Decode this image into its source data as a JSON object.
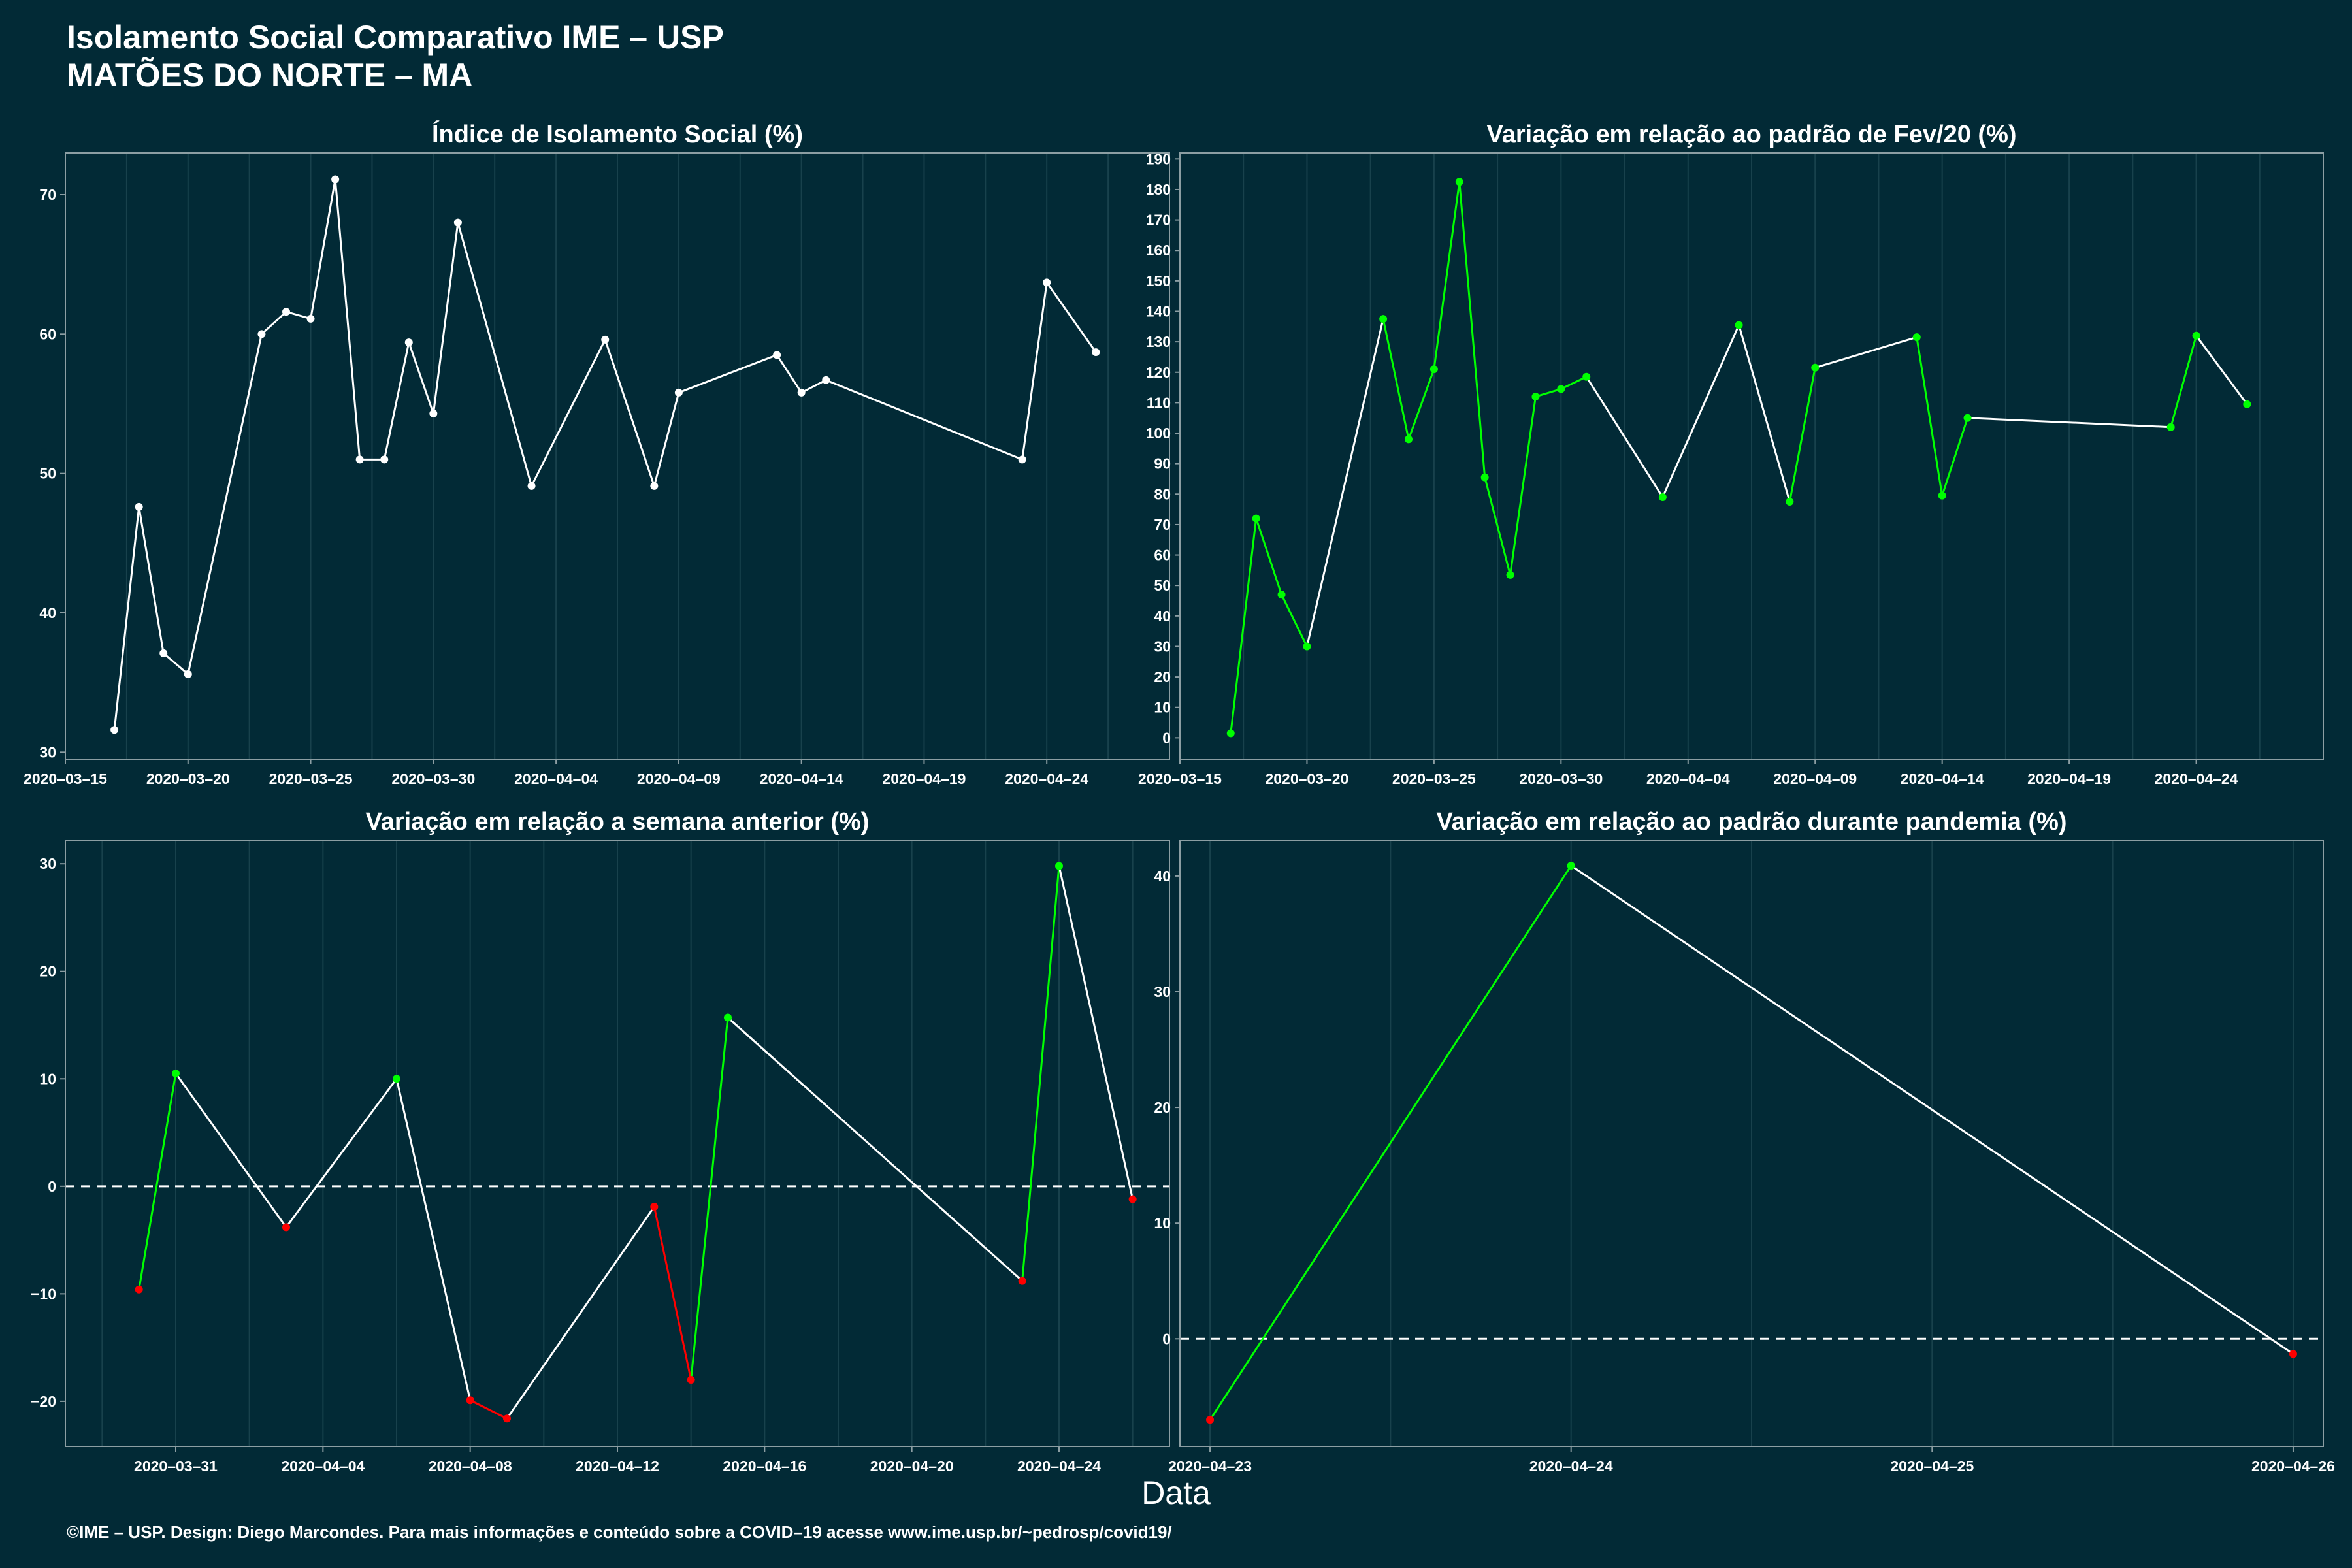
{
  "title_line1": "Isolamento Social Comparativo IME – USP",
  "title_line2": "MATÕES DO NORTE – MA",
  "x_axis_title": "Data",
  "footer": "©IME – USP. Design: Diego Marcondes. Para mais informações e conteúdo sobre a COVID–19 acesse www.ime.usp.br/~pedrosp/covid19/",
  "colors": {
    "background": "#022a36",
    "line": "#ffffff",
    "increase": "#00ff00",
    "decrease": "#ff0000",
    "grid": "#18414c",
    "frame": "#8c9ea3"
  },
  "chart_data": [
    {
      "type": "line",
      "title": "Índice de Isolamento Social (%)",
      "xlabel": "Data",
      "ylabel": "",
      "xlim": [
        "2020-03-15",
        "2020-04-29"
      ],
      "x_ticks": [
        "2020-03-15",
        "2020-03-20",
        "2020-03-25",
        "2020-03-30",
        "2020-04-04",
        "2020-04-09",
        "2020-04-14",
        "2020-04-19",
        "2020-04-24"
      ],
      "ylim": [
        29.5,
        73
      ],
      "y_ticks": [
        30,
        40,
        50,
        60,
        70
      ],
      "grid": true,
      "color_points": false,
      "x": [
        "2020-03-17",
        "2020-03-18",
        "2020-03-19",
        "2020-03-20",
        "2020-03-23",
        "2020-03-24",
        "2020-03-25",
        "2020-03-26",
        "2020-03-27",
        "2020-03-28",
        "2020-03-29",
        "2020-03-30",
        "2020-03-31",
        "2020-04-03",
        "2020-04-06",
        "2020-04-08",
        "2020-04-09",
        "2020-04-13",
        "2020-04-14",
        "2020-04-15",
        "2020-04-23",
        "2020-04-24",
        "2020-04-26"
      ],
      "y": [
        31.6,
        47.6,
        37.1,
        35.6,
        60.0,
        61.6,
        61.1,
        71.1,
        51.0,
        51.0,
        59.4,
        54.3,
        68.0,
        49.1,
        59.6,
        49.1,
        55.8,
        58.5,
        55.8,
        56.7,
        51.0,
        63.7,
        58.7
      ]
    },
    {
      "type": "line",
      "title": "Variação em relação ao padrão de Fev/20 (%)",
      "xlabel": "Data",
      "ylabel": "",
      "xlim": [
        "2020-03-15",
        "2020-04-29"
      ],
      "x_ticks": [
        "2020-03-15",
        "2020-03-20",
        "2020-03-25",
        "2020-03-30",
        "2020-04-04",
        "2020-04-09",
        "2020-04-14",
        "2020-04-19",
        "2020-04-24"
      ],
      "ylim": [
        -7,
        192
      ],
      "y_ticks": [
        0,
        10,
        20,
        30,
        40,
        50,
        60,
        70,
        80,
        90,
        100,
        110,
        120,
        130,
        140,
        150,
        160,
        170,
        180,
        190
      ],
      "grid": true,
      "color_points": true,
      "x": [
        "2020-03-17",
        "2020-03-18",
        "2020-03-19",
        "2020-03-20",
        "2020-03-23",
        "2020-03-24",
        "2020-03-25",
        "2020-03-26",
        "2020-03-27",
        "2020-03-28",
        "2020-03-29",
        "2020-03-30",
        "2020-03-31",
        "2020-04-03",
        "2020-04-06",
        "2020-04-08",
        "2020-04-09",
        "2020-04-13",
        "2020-04-14",
        "2020-04-15",
        "2020-04-23",
        "2020-04-24",
        "2020-04-26"
      ],
      "y": [
        1.5,
        72.0,
        47.0,
        30.0,
        137.5,
        98.0,
        121.0,
        182.5,
        85.5,
        53.5,
        112.0,
        114.5,
        118.5,
        79.0,
        135.5,
        77.5,
        121.5,
        131.5,
        79.5,
        105.0,
        102.0,
        132.0,
        109.5
      ]
    },
    {
      "type": "line",
      "title": "Variação em relação a semana anterior (%)",
      "xlabel": "Data",
      "ylabel": "",
      "xlim": [
        "2020-03-28",
        "2020-04-27"
      ],
      "x_ticks": [
        "2020-03-31",
        "2020-04-04",
        "2020-04-08",
        "2020-04-12",
        "2020-04-16",
        "2020-04-20",
        "2020-04-24"
      ],
      "ylim": [
        -24.2,
        32.2
      ],
      "y_ticks": [
        -20,
        -10,
        0,
        10,
        20,
        30
      ],
      "zero_line": true,
      "grid": true,
      "color_points": true,
      "x": [
        "2020-03-30",
        "2020-03-31",
        "2020-04-03",
        "2020-04-06",
        "2020-04-08",
        "2020-04-09",
        "2020-04-13",
        "2020-04-14",
        "2020-04-15",
        "2020-04-23",
        "2020-04-24",
        "2020-04-26"
      ],
      "y": [
        -9.6,
        10.5,
        -3.8,
        10.0,
        -19.9,
        -21.6,
        -1.9,
        -18.0,
        15.7,
        -8.8,
        29.8,
        -1.2
      ]
    },
    {
      "type": "line",
      "title": "Variação em relação ao padrão durante pandemia (%)",
      "xlabel": "Data",
      "ylabel": "",
      "xlim": [
        "2020-04-22 22:00",
        "2020-04-26 02:00"
      ],
      "x_ticks": [
        "2020-04-23",
        "2020-04-24",
        "2020-04-25",
        "2020-04-26"
      ],
      "ylim": [
        -9.3,
        43.1
      ],
      "y_ticks": [
        0,
        10,
        20,
        30,
        40
      ],
      "zero_line": true,
      "grid": true,
      "color_points": true,
      "x": [
        "2020-04-23",
        "2020-04-24",
        "2020-04-26"
      ],
      "y": [
        -7.0,
        40.9,
        -1.3
      ]
    }
  ]
}
